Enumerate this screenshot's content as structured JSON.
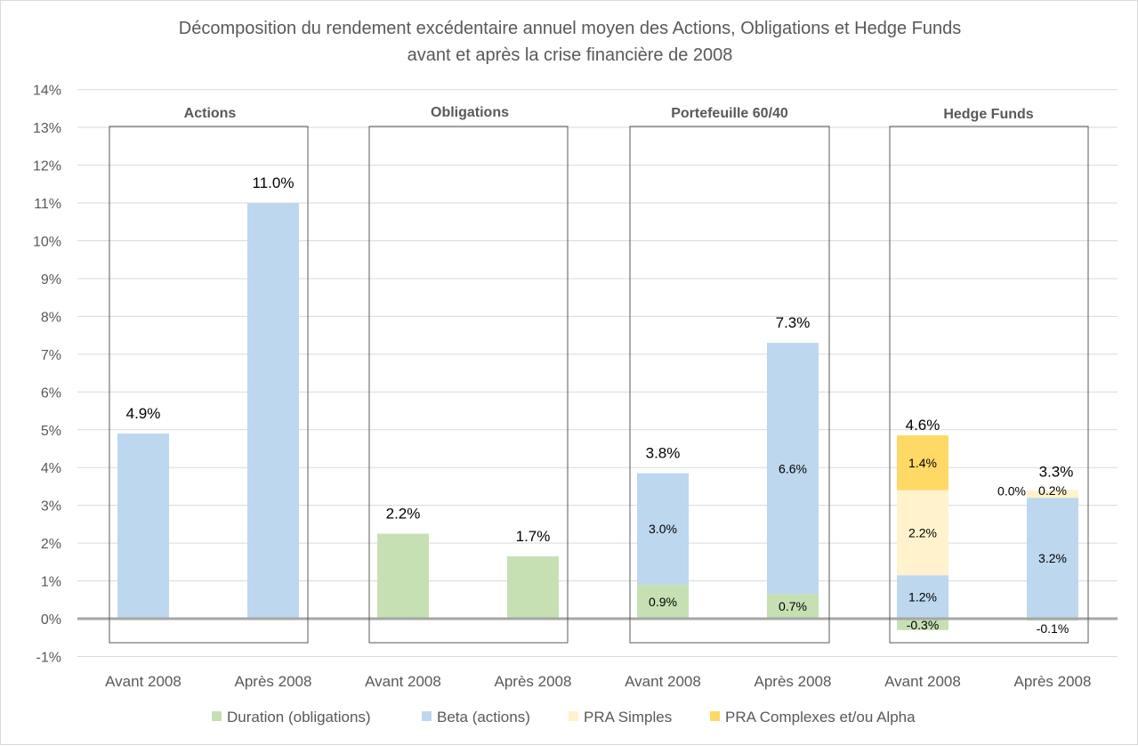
{
  "chart_data": {
    "type": "bar",
    "stacked": true,
    "title": "Décomposition du rendement excédentaire annuel moyen des Actions, Obligations et Hedge Funds",
    "subtitle": "avant et après la crise financière de 2008",
    "ylim": [
      -1,
      14
    ],
    "yticks": [
      -1,
      0,
      1,
      2,
      3,
      4,
      5,
      6,
      7,
      8,
      9,
      10,
      11,
      12,
      13,
      14
    ],
    "ytick_labels": [
      "-1%",
      "0%",
      "1%",
      "2%",
      "3%",
      "4%",
      "5%",
      "6%",
      "7%",
      "8%",
      "9%",
      "10%",
      "11%",
      "12%",
      "13%",
      "14%"
    ],
    "grid": true,
    "legend_position": "bottom",
    "groups": [
      "Actions",
      "Obligations",
      "Portefeuille 60/40",
      "Hedge Funds"
    ],
    "categories": [
      "Avant 2008",
      "Après 2008",
      "Avant 2008",
      "Après 2008",
      "Avant 2008",
      "Après 2008",
      "Avant 2008",
      "Après 2008"
    ],
    "series": [
      {
        "name": "Duration (obligations)",
        "color": "#c6e0b4",
        "values": [
          0,
          0,
          2.25,
          1.65,
          0.9,
          0.65,
          -0.3,
          -0.05
        ]
      },
      {
        "name": "Beta (actions)",
        "color": "#bdd7ee",
        "values": [
          4.9,
          11.0,
          0,
          0,
          2.95,
          6.65,
          1.15,
          3.2
        ]
      },
      {
        "name": "PRA Simples",
        "color": "#fff2cc",
        "values": [
          0,
          0,
          0,
          0,
          0,
          0,
          2.25,
          0.2
        ]
      },
      {
        "name": "PRA Complexes et/ou Alpha",
        "color": "#ffd966",
        "values": [
          0,
          0,
          0,
          0,
          0,
          0,
          1.45,
          0.0
        ]
      }
    ],
    "segment_labels": [
      {
        "bar": 4,
        "series": 0,
        "text": "0.9%"
      },
      {
        "bar": 4,
        "series": 1,
        "text": "3.0%"
      },
      {
        "bar": 5,
        "series": 0,
        "text": "0.7%"
      },
      {
        "bar": 5,
        "series": 1,
        "text": "6.6%"
      },
      {
        "bar": 6,
        "series": 0,
        "text": "-0.3%"
      },
      {
        "bar": 6,
        "series": 1,
        "text": "1.2%"
      },
      {
        "bar": 6,
        "series": 2,
        "text": "2.2%"
      },
      {
        "bar": 6,
        "series": 3,
        "text": "1.4%"
      },
      {
        "bar": 7,
        "series": 0,
        "text": "-0.1%"
      },
      {
        "bar": 7,
        "series": 1,
        "text": "3.2%"
      },
      {
        "bar": 7,
        "series": 2,
        "text": "0.2%"
      },
      {
        "bar": 7,
        "series": 3,
        "text": "0.0%"
      }
    ],
    "totals": [
      "4.9%",
      "11.0%",
      "2.2%",
      "1.7%",
      "3.8%",
      "7.3%",
      "4.6%",
      "3.3%"
    ]
  }
}
